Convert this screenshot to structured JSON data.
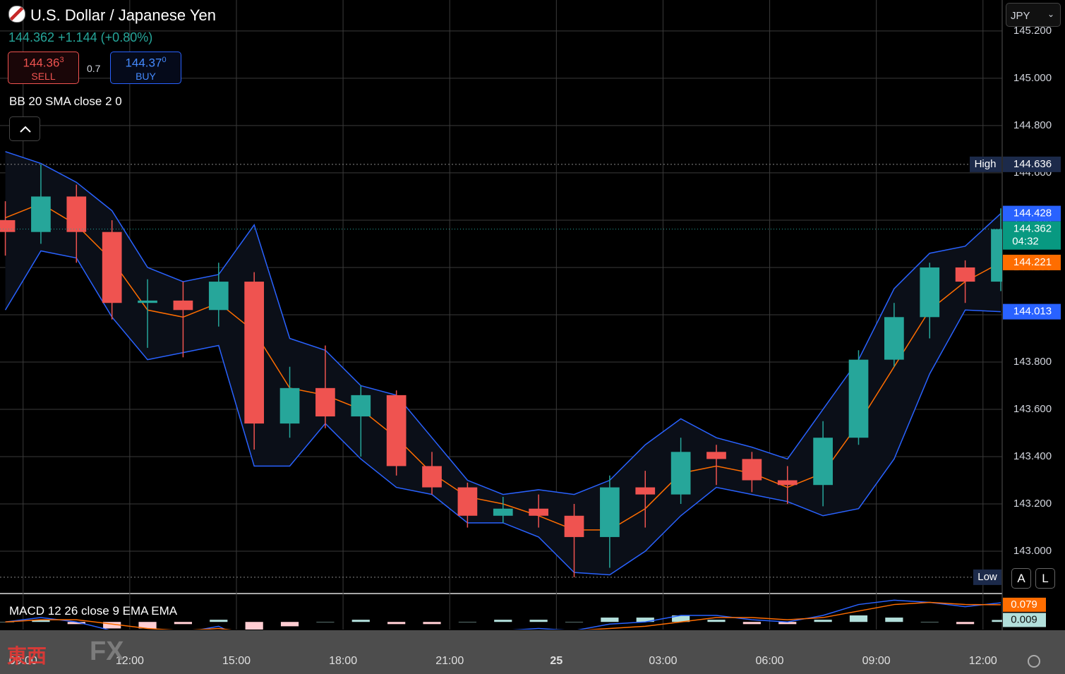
{
  "header": {
    "title": "U.S. Dollar / Japanese Yen",
    "last_price": "144.362",
    "change": "+1.144",
    "change_percent": "(+0.80%)",
    "sell_price_main": "144.36",
    "sell_price_pip": "3",
    "sell_label": "SELL",
    "spread": "0.7",
    "buy_price_main": "144.37",
    "buy_price_pip": "0",
    "buy_label": "BUY",
    "currency": "JPY",
    "auto_button": "A",
    "log_button": "L",
    "watermark_kanji": "東西",
    "watermark_fx": "FX"
  },
  "chart_data": {
    "type": "candlestick",
    "x": [
      -0.5,
      0.5,
      1.5,
      2.5,
      3.5,
      4.5,
      5.5,
      6.5,
      7.5,
      8.5,
      9.5,
      10.5,
      11.5,
      12.5,
      13.5,
      14.5,
      15.5,
      16.5,
      17.5,
      18.5,
      19.5,
      20.5,
      21.5,
      22.5,
      23.5,
      24.5,
      25.5,
      26.5,
      27.5
    ],
    "open": [
      144.4,
      144.35,
      144.5,
      144.35,
      144.05,
      144.06,
      144.02,
      144.14,
      143.54,
      143.69,
      143.57,
      143.66,
      143.36,
      143.27,
      143.15,
      143.18,
      143.15,
      143.06,
      143.27,
      143.24,
      143.42,
      143.39,
      143.3,
      143.28,
      143.48,
      143.81,
      143.99,
      144.2,
      144.14
    ],
    "high": [
      144.48,
      144.636,
      144.55,
      144.4,
      144.15,
      144.14,
      144.22,
      144.18,
      143.78,
      143.87,
      143.7,
      143.68,
      143.42,
      143.29,
      143.23,
      143.24,
      143.2,
      143.32,
      143.34,
      143.48,
      143.45,
      143.42,
      143.36,
      143.55,
      143.85,
      144.05,
      144.22,
      144.23,
      144.45
    ],
    "low": [
      144.25,
      144.3,
      144.22,
      143.98,
      143.86,
      143.82,
      143.95,
      143.43,
      143.48,
      143.52,
      143.4,
      143.32,
      143.24,
      143.1,
      143.12,
      143.1,
      142.89,
      142.93,
      143.1,
      143.2,
      143.28,
      143.25,
      143.2,
      143.19,
      143.45,
      143.78,
      143.9,
      144.05,
      144.1
    ],
    "close": [
      144.35,
      144.5,
      144.35,
      144.05,
      144.06,
      144.02,
      144.14,
      143.54,
      143.69,
      143.57,
      143.66,
      143.36,
      143.27,
      143.15,
      143.18,
      143.15,
      143.06,
      143.27,
      143.24,
      143.42,
      143.39,
      143.3,
      143.28,
      143.48,
      143.81,
      143.99,
      144.2,
      144.14,
      144.362
    ],
    "up_color": "#26a69a",
    "down_color": "#ef5350",
    "xlim": [
      -0.65,
      27.54
    ],
    "xticks": [
      {
        "value": 0,
        "label": "09:00"
      },
      {
        "value": 3,
        "label": "12:00"
      },
      {
        "value": 6,
        "label": "15:00"
      },
      {
        "value": 9,
        "label": "18:00"
      },
      {
        "value": 12,
        "label": "21:00"
      },
      {
        "value": 15,
        "label": "25"
      },
      {
        "value": 18,
        "label": "03:00"
      },
      {
        "value": 21,
        "label": "06:00"
      },
      {
        "value": 24,
        "label": "09:00"
      },
      {
        "value": 27,
        "label": "12:00"
      }
    ],
    "ylim": [
      142.824,
      145.331
    ],
    "yticks": [
      {
        "value": 143.0,
        "label": "143.000"
      },
      {
        "value": 143.2,
        "label": "143.200"
      },
      {
        "value": 143.4,
        "label": "143.400"
      },
      {
        "value": 143.6,
        "label": "143.600"
      },
      {
        "value": 143.8,
        "label": "143.800"
      },
      {
        "value": 144.0,
        "label": "144.000"
      },
      {
        "value": 144.2,
        "label": "144.200"
      },
      {
        "value": 144.4,
        "label": "144.400"
      },
      {
        "value": 144.6,
        "label": "144.600"
      },
      {
        "value": 144.8,
        "label": "144.800"
      },
      {
        "value": 145.0,
        "label": "145.000"
      },
      {
        "value": 145.2,
        "label": "145.200"
      }
    ],
    "grid": true,
    "countdown": "04:32",
    "high_marker": {
      "label": "High",
      "value": 144.636
    },
    "low_marker": {
      "label": "Low",
      "value": 142.89
    },
    "bands": {
      "label": "BB 20 SMA close 2 0",
      "band_color": "#2962ff",
      "basis_color": "#ff6d00",
      "upper": [
        144.69,
        144.64,
        144.56,
        144.44,
        144.2,
        144.14,
        144.17,
        144.38,
        143.9,
        143.85,
        143.7,
        143.66,
        143.48,
        143.3,
        143.24,
        143.26,
        143.24,
        143.3,
        143.45,
        143.56,
        143.48,
        143.44,
        143.39,
        143.6,
        143.81,
        144.11,
        144.26,
        144.29,
        144.428
      ],
      "basis": [
        144.41,
        144.47,
        144.38,
        144.23,
        144.02,
        143.99,
        144.05,
        143.93,
        143.69,
        143.66,
        143.6,
        143.48,
        143.33,
        143.23,
        143.2,
        143.15,
        143.09,
        143.09,
        143.18,
        143.33,
        143.36,
        143.33,
        143.27,
        143.33,
        143.54,
        143.78,
        144.02,
        144.14,
        144.221
      ],
      "lower": [
        144.02,
        144.27,
        144.24,
        143.99,
        143.81,
        143.84,
        143.87,
        143.36,
        143.36,
        143.54,
        143.39,
        143.27,
        143.24,
        143.12,
        143.12,
        143.06,
        142.91,
        142.9,
        143.0,
        143.15,
        143.27,
        143.24,
        143.21,
        143.15,
        143.18,
        143.39,
        143.75,
        144.02,
        144.013
      ]
    },
    "macd": {
      "label": "MACD 12 26 close 9 EMA EMA",
      "ylim": [
        -0.035,
        0.124
      ],
      "macd_color": "#2962ff",
      "signal_color": "#ff6d00",
      "hist_up_color": "#b2dfdb",
      "hist_down_color": "#ffcdd2",
      "macd": [
        0.0,
        0.02,
        0.0,
        -0.04,
        -0.06,
        -0.05,
        -0.02,
        -0.1,
        -0.09,
        -0.07,
        -0.05,
        -0.07,
        -0.07,
        -0.06,
        -0.04,
        -0.03,
        -0.04,
        -0.01,
        0.0,
        0.03,
        0.03,
        0.01,
        0.0,
        0.03,
        0.08,
        0.1,
        0.09,
        0.07,
        0.088
      ],
      "signal": [
        0.0,
        0.01,
        0.01,
        -0.01,
        -0.03,
        -0.04,
        -0.03,
        -0.05,
        -0.07,
        -0.07,
        -0.06,
        -0.06,
        -0.06,
        -0.06,
        -0.05,
        -0.04,
        -0.04,
        -0.03,
        -0.02,
        0.0,
        0.02,
        0.02,
        0.01,
        0.02,
        0.05,
        0.08,
        0.09,
        0.08,
        0.079
      ],
      "histogram": [
        0.0,
        0.01,
        -0.01,
        -0.03,
        -0.03,
        -0.01,
        0.01,
        -0.05,
        -0.02,
        0.0,
        0.01,
        -0.01,
        -0.01,
        0.0,
        0.01,
        0.01,
        0.0,
        0.02,
        0.02,
        0.03,
        0.01,
        -0.01,
        -0.01,
        0.01,
        0.03,
        0.02,
        0.0,
        -0.01,
        0.009
      ]
    }
  }
}
